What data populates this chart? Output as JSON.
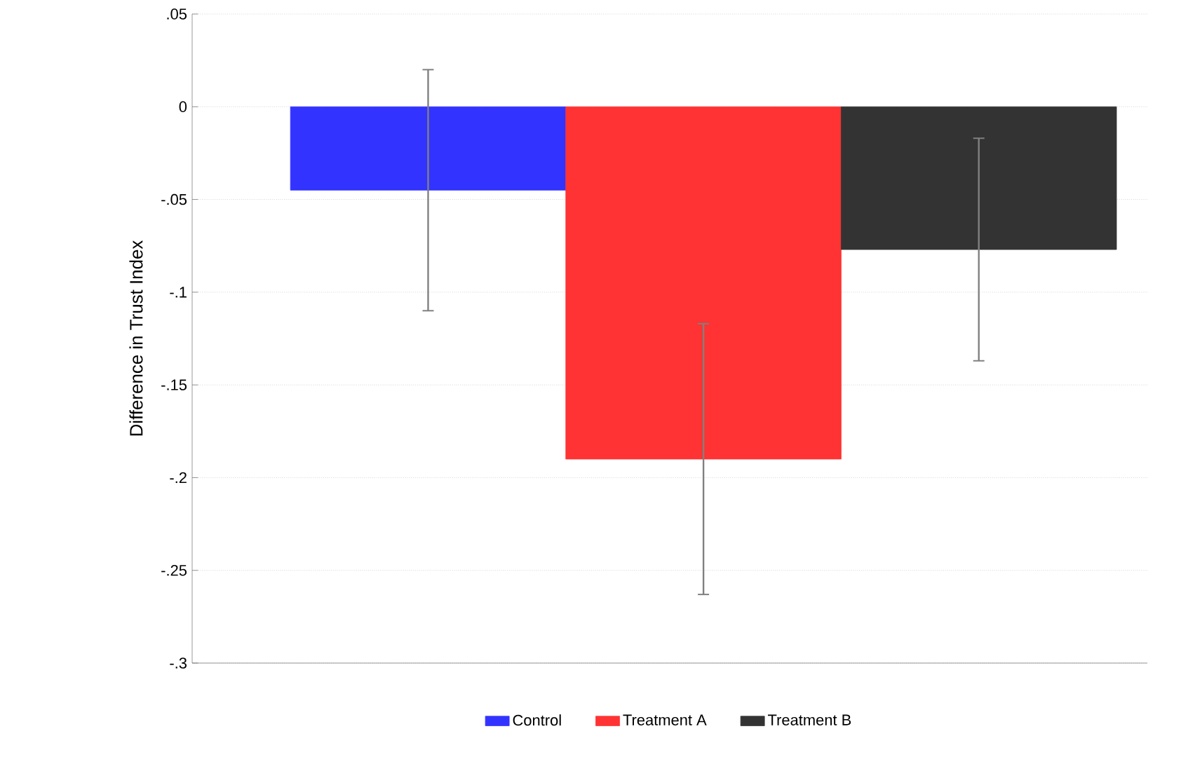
{
  "chart_data": {
    "type": "bar",
    "ylabel": "Difference in Trust Index",
    "categories": [
      null
    ],
    "series": [
      {
        "name": "Control",
        "color": "#3333ff",
        "values": [
          -0.045
        ],
        "errors": [
          0.065
        ]
      },
      {
        "name": "Treatment A",
        "color": "#ff3333",
        "values": [
          -0.19
        ],
        "errors": [
          0.073
        ]
      },
      {
        "name": "Treatment B",
        "color": "#333333",
        "values": [
          -0.077
        ],
        "errors": [
          0.06
        ]
      }
    ],
    "ylim": [
      -0.3,
      0.05
    ],
    "yticks": [
      {
        "value": 0.05,
        "label": ".05"
      },
      0,
      {
        "value": -0.05,
        "label": "-.05"
      },
      {
        "value": -0.1,
        "label": "-.1"
      },
      {
        "value": -0.15,
        "label": "-.15"
      },
      {
        "value": -0.2,
        "label": "-.2"
      },
      {
        "value": -0.25,
        "label": "-.25"
      },
      {
        "value": -0.3,
        "label": "-.3"
      }
    ],
    "grid": "y",
    "legend": "bottom"
  }
}
